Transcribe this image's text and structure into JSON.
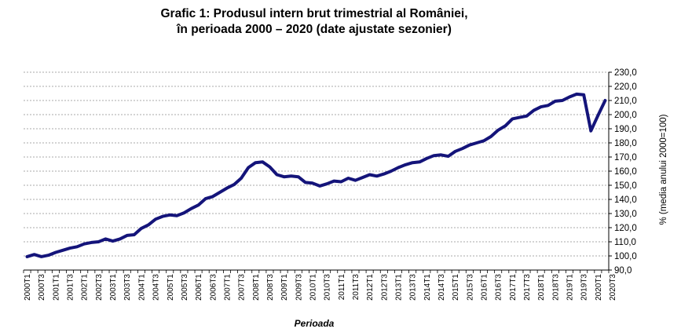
{
  "chart_data": {
    "type": "line",
    "title": "Grafic 1: Produsul intern brut trimestrial al României,",
    "subtitle": "în perioada 2000 – 2020 (date ajustate sezonier)",
    "xlabel": "Perioada",
    "ylabel": "% (media anului 2000=100)",
    "ylim": [
      90,
      230
    ],
    "y_ticks": [
      "90,0",
      "100,0",
      "110,0",
      "120,0",
      "130,0",
      "140,0",
      "150,0",
      "160,0",
      "170,0",
      "180,0",
      "190,0",
      "200,0",
      "210,0",
      "220,0",
      "230,0"
    ],
    "y_tick_values": [
      90,
      100,
      110,
      120,
      130,
      140,
      150,
      160,
      170,
      180,
      190,
      200,
      210,
      220,
      230
    ],
    "x_tick_labels": [
      "2000T1",
      "2000T3",
      "2001T1",
      "2001T3",
      "2002T1",
      "2002T3",
      "2003T1",
      "2003T3",
      "2004T1",
      "2004T3",
      "2005T1",
      "2005T3",
      "2006T1",
      "2006T3",
      "2007T1",
      "2007T3",
      "2008T1",
      "2008T3",
      "2009T1",
      "2009T3",
      "2010T1",
      "2010T3",
      "2011T1",
      "2011T3",
      "2012T1",
      "2012T3",
      "2013T1",
      "2013T3",
      "2014T1",
      "2014T3",
      "2015T1",
      "2015T3",
      "2016T1",
      "2016T3",
      "2017T1",
      "2017T3",
      "2018T1",
      "2018T3",
      "2019T1",
      "2019T3",
      "2020T1",
      "2020T3"
    ],
    "grid": true,
    "series": [
      {
        "color": "#14147a",
        "values": [
          99.5,
          101.0,
          99.5,
          100.5,
          102.5,
          104.0,
          105.5,
          106.5,
          108.5,
          109.5,
          110.0,
          112.0,
          110.5,
          112.0,
          114.5,
          115.0,
          119.5,
          122.0,
          126.0,
          128.0,
          129.0,
          128.5,
          130.5,
          133.5,
          136.0,
          140.5,
          142.0,
          145.0,
          148.0,
          150.5,
          155.0,
          162.5,
          166.0,
          166.5,
          163.0,
          157.5,
          156.0,
          156.5,
          156.0,
          152.0,
          151.5,
          149.5,
          151.0,
          153.0,
          152.5,
          155.0,
          153.5,
          155.5,
          157.5,
          156.5,
          158.0,
          160.0,
          162.5,
          164.5,
          166.0,
          166.5,
          169.0,
          171.0,
          171.5,
          170.5,
          174.0,
          176.0,
          178.5,
          180.0,
          181.5,
          184.5,
          189.0,
          192.0,
          197.0,
          198.0,
          199.0,
          203.0,
          205.5,
          206.5,
          209.5,
          210.0,
          212.5,
          214.5,
          214.0,
          188.5,
          199.5,
          210.0
        ]
      }
    ]
  }
}
